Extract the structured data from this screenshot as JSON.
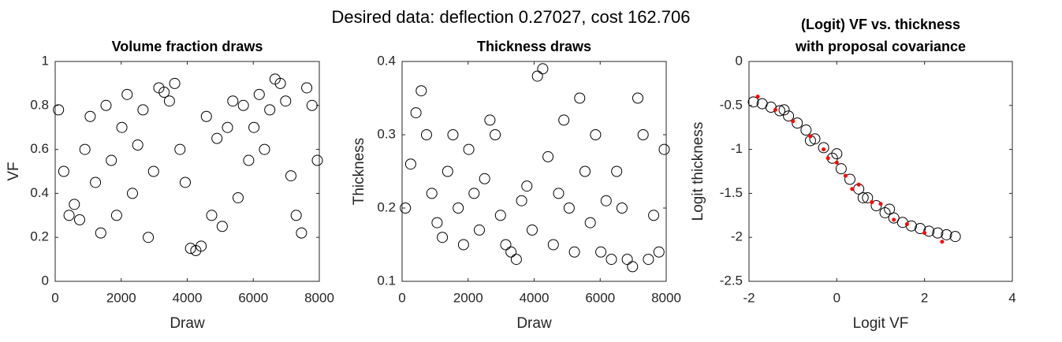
{
  "title": "Desired data: deflection 0.27027, cost 162.706",
  "chart_data": [
    {
      "type": "scatter",
      "title": "Volume fraction draws",
      "x_label": "Draw",
      "y_label": "VF",
      "xlim": [
        0,
        8000
      ],
      "xticks": [
        0,
        2000,
        4000,
        6000,
        8000
      ],
      "ylim": [
        0,
        1
      ],
      "yticks": [
        0,
        0.2,
        0.4,
        0.6,
        0.8,
        1
      ],
      "color": "#000000",
      "marker": "circle",
      "x": [
        100,
        260,
        420,
        580,
        740,
        900,
        1060,
        1220,
        1380,
        1540,
        1700,
        1860,
        2020,
        2180,
        2340,
        2500,
        2660,
        2820,
        2980,
        3140,
        3300,
        3460,
        3620,
        3780,
        3940,
        4100,
        4260,
        4420,
        4580,
        4740,
        4900,
        5060,
        5220,
        5380,
        5540,
        5700,
        5860,
        6020,
        6180,
        6340,
        6500,
        6660,
        6820,
        6980,
        7140,
        7300,
        7460,
        7620,
        7780,
        7940
      ],
      "values": [
        0.78,
        0.5,
        0.3,
        0.35,
        0.28,
        0.6,
        0.75,
        0.45,
        0.22,
        0.8,
        0.55,
        0.3,
        0.7,
        0.85,
        0.4,
        0.62,
        0.78,
        0.2,
        0.5,
        0.88,
        0.86,
        0.82,
        0.9,
        0.6,
        0.45,
        0.15,
        0.14,
        0.16,
        0.75,
        0.3,
        0.65,
        0.25,
        0.7,
        0.82,
        0.38,
        0.8,
        0.55,
        0.7,
        0.85,
        0.6,
        0.78,
        0.92,
        0.9,
        0.82,
        0.48,
        0.3,
        0.22,
        0.88,
        0.8,
        0.55
      ]
    },
    {
      "type": "scatter",
      "title": "Thickness draws",
      "x_label": "Draw",
      "y_label": "Thickness",
      "xlim": [
        0,
        8000
      ],
      "xticks": [
        0,
        2000,
        4000,
        6000,
        8000
      ],
      "ylim": [
        0.1,
        0.4
      ],
      "yticks": [
        0.1,
        0.2,
        0.3,
        0.4
      ],
      "color": "#000000",
      "marker": "circle",
      "x": [
        100,
        260,
        420,
        580,
        740,
        900,
        1060,
        1220,
        1380,
        1540,
        1700,
        1860,
        2020,
        2180,
        2340,
        2500,
        2660,
        2820,
        2980,
        3140,
        3300,
        3460,
        3620,
        3780,
        3940,
        4100,
        4260,
        4420,
        4580,
        4740,
        4900,
        5060,
        5220,
        5380,
        5540,
        5700,
        5860,
        6020,
        6180,
        6340,
        6500,
        6660,
        6820,
        6980,
        7140,
        7300,
        7460,
        7620,
        7780,
        7940
      ],
      "values": [
        0.2,
        0.26,
        0.33,
        0.36,
        0.3,
        0.22,
        0.18,
        0.16,
        0.25,
        0.3,
        0.2,
        0.15,
        0.28,
        0.22,
        0.17,
        0.24,
        0.32,
        0.3,
        0.19,
        0.15,
        0.14,
        0.13,
        0.21,
        0.23,
        0.17,
        0.38,
        0.39,
        0.27,
        0.15,
        0.22,
        0.32,
        0.2,
        0.14,
        0.35,
        0.25,
        0.18,
        0.3,
        0.14,
        0.21,
        0.13,
        0.25,
        0.2,
        0.13,
        0.12,
        0.35,
        0.3,
        0.13,
        0.19,
        0.14,
        0.28
      ]
    },
    {
      "type": "scatter",
      "title": [
        "(Logit) VF vs. thickness",
        "with proposal covariance"
      ],
      "x_label": "Logit VF",
      "y_label": "Logit thickness",
      "xlim": [
        -2,
        4
      ],
      "xticks": [
        -2,
        0,
        2,
        4
      ],
      "ylim": [
        -2.5,
        0
      ],
      "yticks": [
        -2.5,
        -2,
        -1.5,
        -1,
        -0.5,
        0
      ],
      "series": [
        {
          "color": "#000000",
          "marker": "circle",
          "x": [
            -1.9,
            -1.7,
            -1.5,
            -1.3,
            -1.1,
            -0.9,
            -0.7,
            -0.5,
            -0.3,
            -0.1,
            0.1,
            0.3,
            0.5,
            0.7,
            0.9,
            1.1,
            1.3,
            1.5,
            1.7,
            1.9,
            2.1,
            2.3,
            2.5,
            2.7,
            -0.6,
            0.0,
            0.6,
            1.2,
            -1.2
          ],
          "values": [
            -0.46,
            -0.48,
            -0.52,
            -0.56,
            -0.62,
            -0.7,
            -0.78,
            -0.88,
            -0.98,
            -1.1,
            -1.22,
            -1.34,
            -1.45,
            -1.55,
            -1.64,
            -1.72,
            -1.78,
            -1.83,
            -1.87,
            -1.9,
            -1.93,
            -1.95,
            -1.97,
            -1.99,
            -0.9,
            -1.05,
            -1.55,
            -1.68,
            -0.55
          ]
        },
        {
          "color": "#ff0000",
          "marker": "dot",
          "x": [
            -1.8,
            -1.4,
            -1.0,
            -0.6,
            -0.3,
            0.0,
            0.2,
            0.5,
            0.8,
            1.0,
            1.3,
            1.6,
            2.0,
            2.4,
            0.35,
            -0.2
          ],
          "values": [
            -0.4,
            -0.55,
            -0.68,
            -0.85,
            -1.0,
            -1.15,
            -1.3,
            -1.4,
            -1.6,
            -1.62,
            -1.8,
            -1.85,
            -1.95,
            -2.05,
            -1.45,
            -1.1
          ]
        }
      ]
    }
  ]
}
